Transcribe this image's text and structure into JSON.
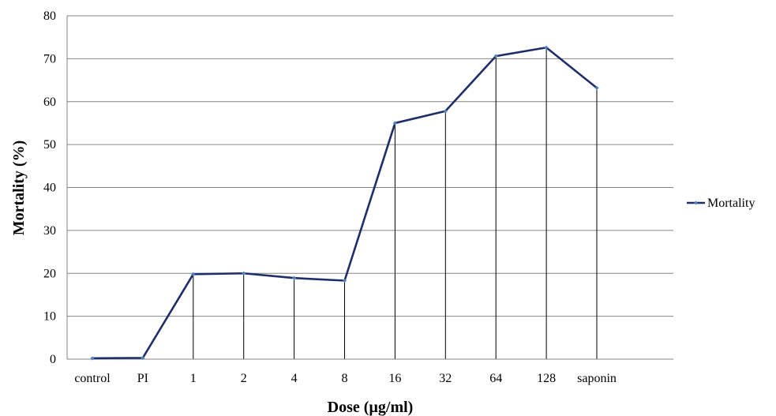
{
  "chart_data": {
    "type": "line",
    "title": "",
    "xlabel": "Dose (µg/ml)",
    "ylabel": "Mortality (%)",
    "categories": [
      "control",
      "PI",
      "1",
      "2",
      "4",
      "8",
      "16",
      "32",
      "64",
      "128",
      "saponin"
    ],
    "series": [
      {
        "name": "Mortality",
        "values": [
          0.2,
          0.3,
          19.8,
          20.0,
          18.9,
          18.3,
          55.0,
          57.8,
          70.6,
          72.6,
          63.2
        ]
      }
    ],
    "ylim": [
      0,
      80
    ],
    "yticks": [
      0,
      10,
      20,
      30,
      40,
      50,
      60,
      70,
      80
    ],
    "grid": "horizontal",
    "drop_lines": true,
    "legend_position": "right",
    "colors": {
      "line": "#1f2d6b",
      "marker": "#4f81bd",
      "grid": "#868686",
      "drop_line": "#000000"
    }
  }
}
